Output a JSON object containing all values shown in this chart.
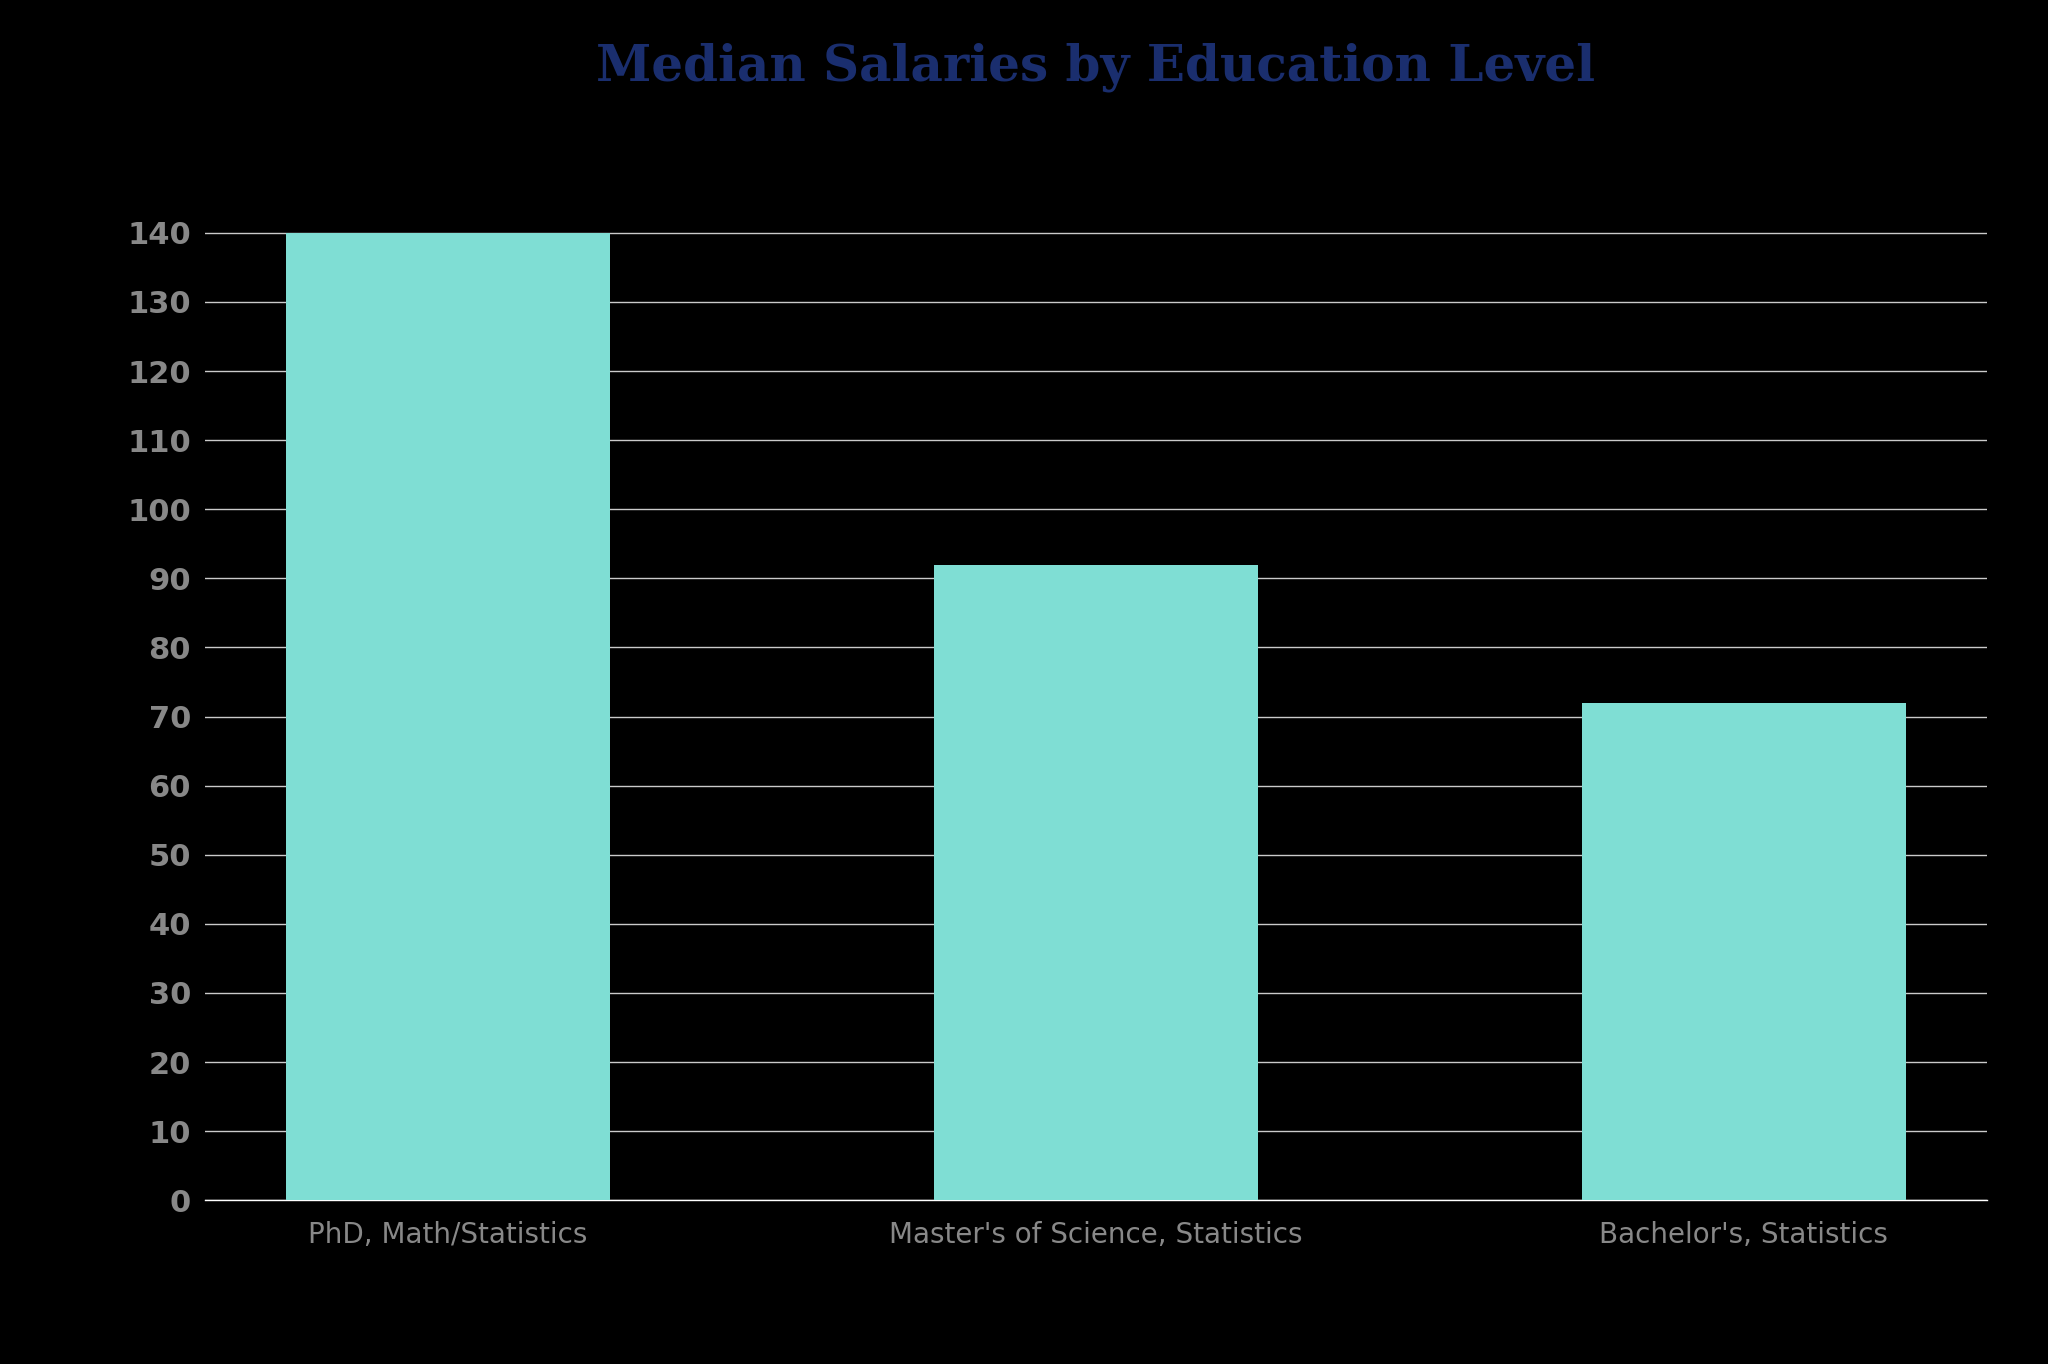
{
  "title": "Median Salaries by Education Level",
  "categories": [
    "PhD, Math/Statistics",
    "Master's of Science, Statistics",
    "Bachelor's, Statistics"
  ],
  "values": [
    140,
    92,
    72
  ],
  "bar_color": "#7FDED4",
  "background_color": "#000000",
  "axes_facecolor": "#000000",
  "title_color": "#1a2e6e",
  "tick_label_color": "#888888",
  "grid_color": "#ffffff",
  "ylim": [
    0,
    150
  ],
  "yticks": [
    0,
    10,
    20,
    30,
    40,
    50,
    60,
    70,
    80,
    90,
    100,
    110,
    120,
    130,
    140
  ],
  "title_fontsize": 36,
  "tick_fontsize": 22,
  "xlabel_fontsize": 20,
  "bar_width": 0.5
}
